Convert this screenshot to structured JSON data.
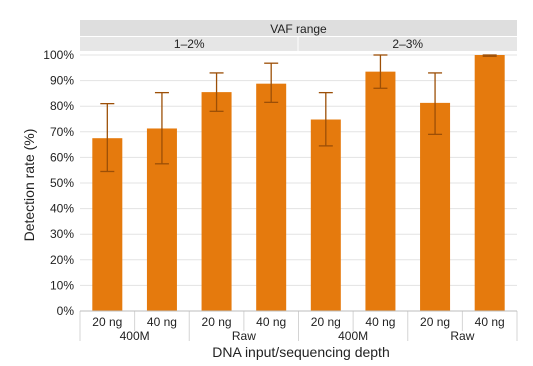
{
  "chart_data": {
    "type": "bar",
    "ylabel": "Detection rate (%)",
    "xlabel": "DNA input/sequencing depth",
    "ylim": [
      0,
      100
    ],
    "yticks": [
      "0%",
      "10%",
      "20%",
      "30%",
      "40%",
      "50%",
      "60%",
      "70%",
      "80%",
      "90%",
      "100%"
    ],
    "facet_title": "VAF range",
    "facets": [
      "1–2%",
      "2–3%"
    ],
    "depth_groups": [
      "400M",
      "Raw"
    ],
    "categories": [
      "20 ng",
      "40 ng",
      "20 ng",
      "40 ng",
      "20 ng",
      "40 ng",
      "20 ng",
      "40 ng"
    ],
    "values": [
      67.5,
      71.3,
      85.5,
      88.8,
      74.8,
      93.5,
      81.3,
      100
    ],
    "error_low": [
      54.5,
      57.5,
      78,
      81.5,
      64.5,
      87,
      69,
      99.5
    ],
    "error_high": [
      81,
      85.3,
      93,
      96.8,
      85.3,
      100,
      93,
      100
    ],
    "bar_color": "#e57a0d",
    "error_color": "#9c4f07",
    "strip_color": "#dedede",
    "grid": true
  }
}
